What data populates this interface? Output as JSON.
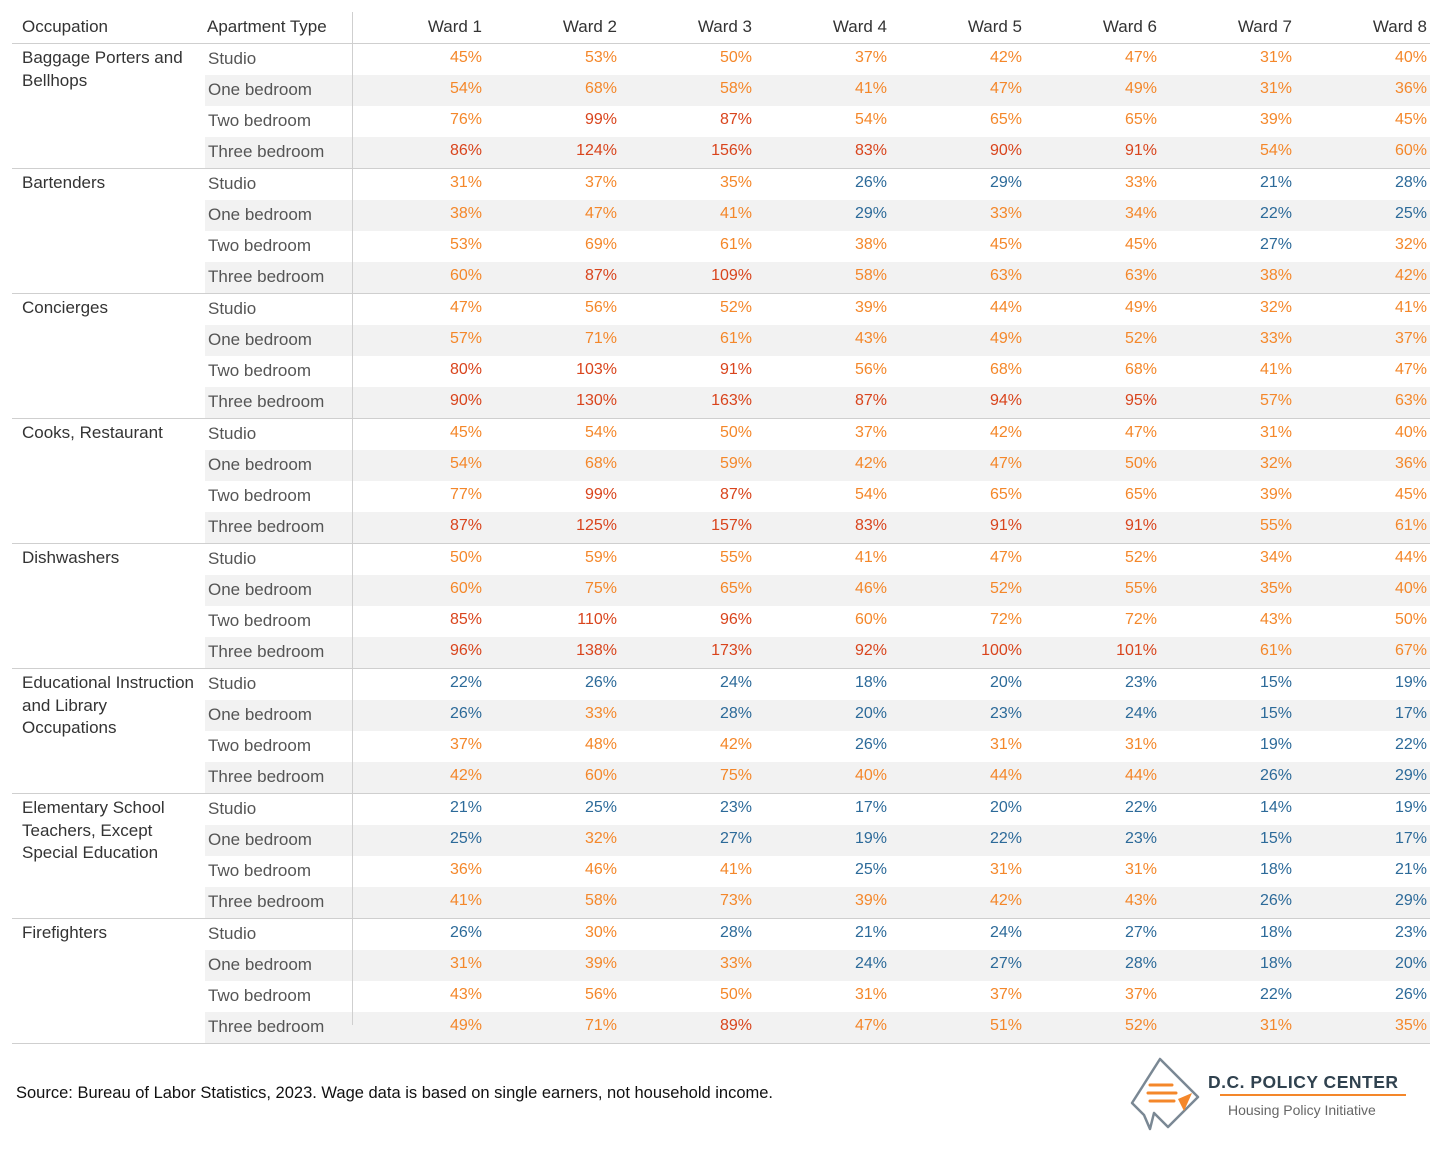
{
  "header": {
    "occupation": "Occupation",
    "apartment_type": "Apartment Type",
    "wards": [
      "Ward 1",
      "Ward 2",
      "Ward 3",
      "Ward 4",
      "Ward 5",
      "Ward 6",
      "Ward 7",
      "Ward 8"
    ]
  },
  "colors": {
    "low": "#2c6a99",
    "mid": "#f4872a",
    "high": "#d9441c",
    "shade": "#f2f2f2"
  },
  "groups": [
    {
      "occupation": "Baggage Porters and Bellhops",
      "rows": [
        {
          "type": "Studio",
          "values": [
            "45%",
            "53%",
            "50%",
            "37%",
            "42%",
            "47%",
            "31%",
            "40%"
          ]
        },
        {
          "type": "One bedroom",
          "values": [
            "54%",
            "68%",
            "58%",
            "41%",
            "47%",
            "49%",
            "31%",
            "36%"
          ]
        },
        {
          "type": "Two bedroom",
          "values": [
            "76%",
            "99%",
            "87%",
            "54%",
            "65%",
            "65%",
            "39%",
            "45%"
          ]
        },
        {
          "type": "Three bedroom",
          "values": [
            "86%",
            "124%",
            "156%",
            "83%",
            "90%",
            "91%",
            "54%",
            "60%"
          ]
        }
      ]
    },
    {
      "occupation": "Bartenders",
      "rows": [
        {
          "type": "Studio",
          "values": [
            "31%",
            "37%",
            "35%",
            "26%",
            "29%",
            "33%",
            "21%",
            "28%"
          ]
        },
        {
          "type": "One bedroom",
          "values": [
            "38%",
            "47%",
            "41%",
            "29%",
            "33%",
            "34%",
            "22%",
            "25%"
          ]
        },
        {
          "type": "Two bedroom",
          "values": [
            "53%",
            "69%",
            "61%",
            "38%",
            "45%",
            "45%",
            "27%",
            "32%"
          ]
        },
        {
          "type": "Three bedroom",
          "values": [
            "60%",
            "87%",
            "109%",
            "58%",
            "63%",
            "63%",
            "38%",
            "42%"
          ]
        }
      ]
    },
    {
      "occupation": "Concierges",
      "rows": [
        {
          "type": "Studio",
          "values": [
            "47%",
            "56%",
            "52%",
            "39%",
            "44%",
            "49%",
            "32%",
            "41%"
          ]
        },
        {
          "type": "One bedroom",
          "values": [
            "57%",
            "71%",
            "61%",
            "43%",
            "49%",
            "52%",
            "33%",
            "37%"
          ]
        },
        {
          "type": "Two bedroom",
          "values": [
            "80%",
            "103%",
            "91%",
            "56%",
            "68%",
            "68%",
            "41%",
            "47%"
          ]
        },
        {
          "type": "Three bedroom",
          "values": [
            "90%",
            "130%",
            "163%",
            "87%",
            "94%",
            "95%",
            "57%",
            "63%"
          ]
        }
      ]
    },
    {
      "occupation": "Cooks, Restaurant",
      "rows": [
        {
          "type": "Studio",
          "values": [
            "45%",
            "54%",
            "50%",
            "37%",
            "42%",
            "47%",
            "31%",
            "40%"
          ]
        },
        {
          "type": "One bedroom",
          "values": [
            "54%",
            "68%",
            "59%",
            "42%",
            "47%",
            "50%",
            "32%",
            "36%"
          ]
        },
        {
          "type": "Two bedroom",
          "values": [
            "77%",
            "99%",
            "87%",
            "54%",
            "65%",
            "65%",
            "39%",
            "45%"
          ]
        },
        {
          "type": "Three bedroom",
          "values": [
            "87%",
            "125%",
            "157%",
            "83%",
            "91%",
            "91%",
            "55%",
            "61%"
          ]
        }
      ]
    },
    {
      "occupation": "Dishwashers",
      "rows": [
        {
          "type": "Studio",
          "values": [
            "50%",
            "59%",
            "55%",
            "41%",
            "47%",
            "52%",
            "34%",
            "44%"
          ]
        },
        {
          "type": "One bedroom",
          "values": [
            "60%",
            "75%",
            "65%",
            "46%",
            "52%",
            "55%",
            "35%",
            "40%"
          ]
        },
        {
          "type": "Two bedroom",
          "values": [
            "85%",
            "110%",
            "96%",
            "60%",
            "72%",
            "72%",
            "43%",
            "50%"
          ]
        },
        {
          "type": "Three bedroom",
          "values": [
            "96%",
            "138%",
            "173%",
            "92%",
            "100%",
            "101%",
            "61%",
            "67%"
          ]
        }
      ]
    },
    {
      "occupation": "Educational Instruction and Library Occupations",
      "rows": [
        {
          "type": "Studio",
          "values": [
            "22%",
            "26%",
            "24%",
            "18%",
            "20%",
            "23%",
            "15%",
            "19%"
          ]
        },
        {
          "type": "One bedroom",
          "values": [
            "26%",
            "33%",
            "28%",
            "20%",
            "23%",
            "24%",
            "15%",
            "17%"
          ]
        },
        {
          "type": "Two bedroom",
          "values": [
            "37%",
            "48%",
            "42%",
            "26%",
            "31%",
            "31%",
            "19%",
            "22%"
          ]
        },
        {
          "type": "Three bedroom",
          "values": [
            "42%",
            "60%",
            "75%",
            "40%",
            "44%",
            "44%",
            "26%",
            "29%"
          ]
        }
      ]
    },
    {
      "occupation": "Elementary School Teachers, Except Special Education",
      "rows": [
        {
          "type": "Studio",
          "values": [
            "21%",
            "25%",
            "23%",
            "17%",
            "20%",
            "22%",
            "14%",
            "19%"
          ]
        },
        {
          "type": "One bedroom",
          "values": [
            "25%",
            "32%",
            "27%",
            "19%",
            "22%",
            "23%",
            "15%",
            "17%"
          ]
        },
        {
          "type": "Two bedroom",
          "values": [
            "36%",
            "46%",
            "41%",
            "25%",
            "31%",
            "31%",
            "18%",
            "21%"
          ]
        },
        {
          "type": "Three bedroom",
          "values": [
            "41%",
            "58%",
            "73%",
            "39%",
            "42%",
            "43%",
            "26%",
            "29%"
          ]
        }
      ]
    },
    {
      "occupation": "Firefighters",
      "rows": [
        {
          "type": "Studio",
          "values": [
            "26%",
            "30%",
            "28%",
            "21%",
            "24%",
            "27%",
            "18%",
            "23%"
          ]
        },
        {
          "type": "One bedroom",
          "values": [
            "31%",
            "39%",
            "33%",
            "24%",
            "27%",
            "28%",
            "18%",
            "20%"
          ]
        },
        {
          "type": "Two bedroom",
          "values": [
            "43%",
            "56%",
            "50%",
            "31%",
            "37%",
            "37%",
            "22%",
            "26%"
          ]
        },
        {
          "type": "Three bedroom",
          "values": [
            "49%",
            "71%",
            "89%",
            "47%",
            "51%",
            "52%",
            "31%",
            "35%"
          ]
        }
      ]
    }
  ],
  "source": "Source: Bureau of Labor Statistics, 2023. Wage data is based on single earners, not household income.",
  "logo": {
    "title": "D.C. POLICY CENTER",
    "subtitle": "Housing Policy Initiative"
  },
  "chart_data": {
    "type": "table",
    "columns": [
      "Occupation",
      "Apartment Type",
      "Ward 1",
      "Ward 2",
      "Ward 3",
      "Ward 4",
      "Ward 5",
      "Ward 6",
      "Ward 7",
      "Ward 8"
    ],
    "rows": [
      [
        "Baggage Porters and Bellhops",
        "Studio",
        45,
        53,
        50,
        37,
        42,
        47,
        31,
        40
      ],
      [
        "Baggage Porters and Bellhops",
        "One bedroom",
        54,
        68,
        58,
        41,
        47,
        49,
        31,
        36
      ],
      [
        "Baggage Porters and Bellhops",
        "Two bedroom",
        76,
        99,
        87,
        54,
        65,
        65,
        39,
        45
      ],
      [
        "Baggage Porters and Bellhops",
        "Three bedroom",
        86,
        124,
        156,
        83,
        90,
        91,
        54,
        60
      ],
      [
        "Bartenders",
        "Studio",
        31,
        37,
        35,
        26,
        29,
        33,
        21,
        28
      ],
      [
        "Bartenders",
        "One bedroom",
        38,
        47,
        41,
        29,
        33,
        34,
        22,
        25
      ],
      [
        "Bartenders",
        "Two bedroom",
        53,
        69,
        61,
        38,
        45,
        45,
        27,
        32
      ],
      [
        "Bartenders",
        "Three bedroom",
        60,
        87,
        109,
        58,
        63,
        63,
        38,
        42
      ],
      [
        "Concierges",
        "Studio",
        47,
        56,
        52,
        39,
        44,
        49,
        32,
        41
      ],
      [
        "Concierges",
        "One bedroom",
        57,
        71,
        61,
        43,
        49,
        52,
        33,
        37
      ],
      [
        "Concierges",
        "Two bedroom",
        80,
        103,
        91,
        56,
        68,
        68,
        41,
        47
      ],
      [
        "Concierges",
        "Three bedroom",
        90,
        130,
        163,
        87,
        94,
        95,
        57,
        63
      ],
      [
        "Cooks, Restaurant",
        "Studio",
        45,
        54,
        50,
        37,
        42,
        47,
        31,
        40
      ],
      [
        "Cooks, Restaurant",
        "One bedroom",
        54,
        68,
        59,
        42,
        47,
        50,
        32,
        36
      ],
      [
        "Cooks, Restaurant",
        "Two bedroom",
        77,
        99,
        87,
        54,
        65,
        65,
        39,
        45
      ],
      [
        "Cooks, Restaurant",
        "Three bedroom",
        87,
        125,
        157,
        83,
        91,
        91,
        55,
        61
      ],
      [
        "Dishwashers",
        "Studio",
        50,
        59,
        55,
        41,
        47,
        52,
        34,
        44
      ],
      [
        "Dishwashers",
        "One bedroom",
        60,
        75,
        65,
        46,
        52,
        55,
        35,
        40
      ],
      [
        "Dishwashers",
        "Two bedroom",
        85,
        110,
        96,
        60,
        72,
        72,
        43,
        50
      ],
      [
        "Dishwashers",
        "Three bedroom",
        96,
        138,
        173,
        92,
        100,
        101,
        61,
        67
      ],
      [
        "Educational Instruction and Library Occupations",
        "Studio",
        22,
        26,
        24,
        18,
        20,
        23,
        15,
        19
      ],
      [
        "Educational Instruction and Library Occupations",
        "One bedroom",
        26,
        33,
        28,
        20,
        23,
        24,
        15,
        17
      ],
      [
        "Educational Instruction and Library Occupations",
        "Two bedroom",
        37,
        48,
        42,
        26,
        31,
        31,
        19,
        22
      ],
      [
        "Educational Instruction and Library Occupations",
        "Three bedroom",
        42,
        60,
        75,
        40,
        44,
        44,
        26,
        29
      ],
      [
        "Elementary School Teachers, Except Special Education",
        "Studio",
        21,
        25,
        23,
        17,
        20,
        22,
        14,
        19
      ],
      [
        "Elementary School Teachers, Except Special Education",
        "One bedroom",
        25,
        32,
        27,
        19,
        22,
        23,
        15,
        17
      ],
      [
        "Elementary School Teachers, Except Special Education",
        "Two bedroom",
        36,
        46,
        41,
        25,
        31,
        31,
        18,
        21
      ],
      [
        "Elementary School Teachers, Except Special Education",
        "Three bedroom",
        41,
        58,
        73,
        39,
        42,
        43,
        26,
        29
      ],
      [
        "Firefighters",
        "Studio",
        26,
        30,
        28,
        21,
        24,
        27,
        18,
        23
      ],
      [
        "Firefighters",
        "One bedroom",
        31,
        39,
        33,
        24,
        27,
        28,
        18,
        20
      ],
      [
        "Firefighters",
        "Two bedroom",
        43,
        56,
        50,
        31,
        37,
        37,
        22,
        26
      ],
      [
        "Firefighters",
        "Three bedroom",
        49,
        71,
        89,
        47,
        51,
        52,
        31,
        35
      ]
    ]
  }
}
